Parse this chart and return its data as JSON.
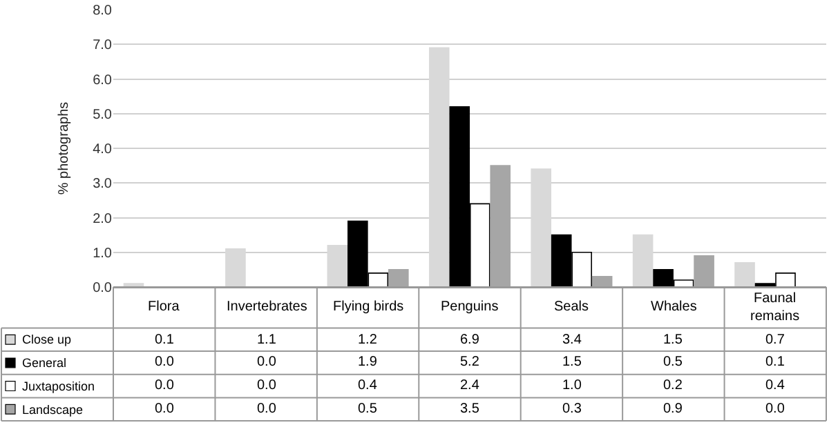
{
  "chart_data": {
    "type": "bar",
    "ylabel": "% photographs",
    "categories": [
      "Flora",
      "Invertebrates",
      "Flying birds",
      "Penguins",
      "Seals",
      "Whales",
      "Faunal remains"
    ],
    "series": [
      {
        "name": "Close up",
        "color": "#d9d9d9",
        "values": [
          0.1,
          1.1,
          1.2,
          6.9,
          3.4,
          1.5,
          0.7
        ],
        "value_labels": [
          "0.1",
          "1.1",
          "1.2",
          "6.9",
          "3.4",
          "1.5",
          "0.7"
        ]
      },
      {
        "name": "General",
        "color": "#000000",
        "values": [
          0.0,
          0.0,
          1.9,
          5.2,
          1.5,
          0.5,
          0.1
        ],
        "value_labels": [
          "0.0",
          "0.0",
          "1.9",
          "5.2",
          "1.5",
          "0.5",
          "0.1"
        ]
      },
      {
        "name": "Juxtaposition",
        "color": "#ffffff",
        "values": [
          0.0,
          0.0,
          0.4,
          2.4,
          1.0,
          0.2,
          0.4
        ],
        "value_labels": [
          "0.0",
          "0.0",
          "0.4",
          "2.4",
          "1.0",
          "0.2",
          "0.4"
        ]
      },
      {
        "name": "Landscape",
        "color": "#a6a6a6",
        "values": [
          0.0,
          0.0,
          0.5,
          3.5,
          0.3,
          0.9,
          0.0
        ],
        "value_labels": [
          "0.0",
          "0.0",
          "0.5",
          "3.5",
          "0.3",
          "0.9",
          "0.0"
        ]
      }
    ],
    "ylim": [
      0,
      8
    ],
    "yticks": [
      {
        "value": 0,
        "label": "0.0"
      },
      {
        "value": 1,
        "label": "1.0"
      },
      {
        "value": 2,
        "label": "2.0"
      },
      {
        "value": 3,
        "label": "3.0"
      },
      {
        "value": 4,
        "label": "4.0"
      },
      {
        "value": 5,
        "label": "5.0"
      },
      {
        "value": 6,
        "label": "6.0"
      },
      {
        "value": 7,
        "label": "7.0"
      },
      {
        "value": 8,
        "label": "8.0"
      }
    ],
    "grid": "y",
    "legend": "bottom left"
  }
}
